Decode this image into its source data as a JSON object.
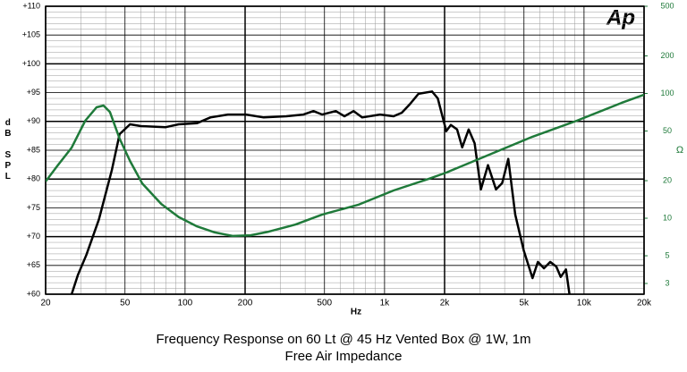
{
  "chart_data": {
    "type": "line",
    "title": "Frequency Response on 60 Lt @ 45 Hz Vented Box @ 1W, 1m",
    "subtitle": "Free Air Impedance",
    "logo": "Ap",
    "xlabel": "Hz",
    "ylabel": "dB SPL",
    "y2label": "Ω",
    "xscale": "log",
    "y2scale": "log",
    "grid": true,
    "xlim": [
      20,
      20000
    ],
    "ylim": [
      60,
      110
    ],
    "y2lim": [
      2.46,
      500
    ],
    "xticks": [
      20,
      50,
      100,
      200,
      500,
      {
        "value": 1000,
        "label": "1k"
      },
      {
        "value": 2000,
        "label": "2k"
      },
      {
        "value": 5000,
        "label": "5k"
      },
      {
        "value": 10000,
        "label": "10k"
      },
      {
        "value": 20000,
        "label": "20k"
      }
    ],
    "yticks": [
      {
        "value": 60,
        "label": "+60"
      },
      {
        "value": 65,
        "label": "+65"
      },
      {
        "value": 70,
        "label": "+70"
      },
      {
        "value": 75,
        "label": "+75"
      },
      {
        "value": 80,
        "label": "+80"
      },
      {
        "value": 85,
        "label": "+85"
      },
      {
        "value": 90,
        "label": "+90"
      },
      {
        "value": 95,
        "label": "+95"
      },
      {
        "value": 100,
        "label": "+100"
      },
      {
        "value": 105,
        "label": "+105"
      },
      {
        "value": 110,
        "label": "+110"
      }
    ],
    "y2ticks": [
      3,
      5,
      10,
      20,
      50,
      100,
      200,
      500
    ],
    "series": [
      {
        "color": "#000000",
        "x": [
          27,
          29,
          32,
          37,
          43,
          47,
          53,
          60,
          80,
          93,
          115,
          134,
          164,
          202,
          248,
          322,
          392,
          440,
          487,
          570,
          630,
          700,
          772,
          950,
          1110,
          1220,
          1340,
          1480,
          1730,
          1850,
          2040,
          2150,
          2310,
          2450,
          2640,
          2830,
          3040,
          3300,
          3620,
          3890,
          4170,
          4520,
          4990,
          5520,
          5870,
          6300,
          6770,
          7260,
          7640,
          8120,
          8450
        ],
        "values": [
          60,
          63.3,
          66.8,
          73,
          81.6,
          87.8,
          89.5,
          89.2,
          89,
          89.5,
          89.7,
          90.7,
          91.2,
          91.2,
          90.7,
          90.9,
          91.2,
          91.8,
          91.2,
          91.8,
          90.9,
          91.8,
          90.7,
          91.2,
          90.9,
          91.5,
          93,
          94.8,
          95.2,
          94,
          88.3,
          89.4,
          88.6,
          85.5,
          88.6,
          86.2,
          78.2,
          82.4,
          78.2,
          79.3,
          83.5,
          73.8,
          67.6,
          62.8,
          65.6,
          64.5,
          65.6,
          64.8,
          63,
          64.3,
          60
        ]
      },
      {
        "color": "#1f7a3a",
        "axis": "y2",
        "x": [
          20,
          23,
          27,
          31.6,
          36,
          39,
          42,
          47,
          53,
          61,
          76,
          93,
          115,
          141,
          173,
          213,
          262,
          358,
          487,
          736,
          1110,
          1670,
          2040,
          3420,
          5520,
          9200,
          15400,
          20000
        ],
        "values": [
          19.7,
          26.5,
          36.8,
          60.5,
          77.4,
          80,
          71,
          43.5,
          28.7,
          19,
          13,
          10.2,
          8.6,
          7.7,
          7.2,
          7.3,
          7.8,
          8.9,
          10.7,
          12.8,
          16.7,
          20.7,
          23.2,
          32.8,
          45,
          60.5,
          84,
          97.7
        ]
      }
    ]
  }
}
